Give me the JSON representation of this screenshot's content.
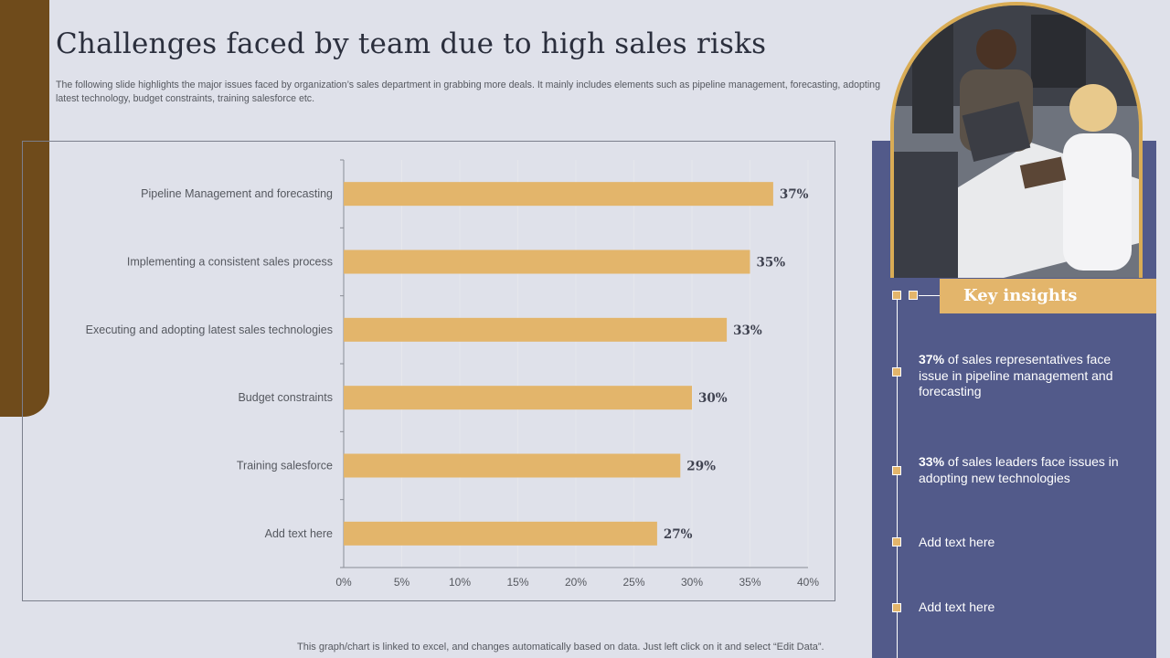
{
  "title": "Challenges faced by team due to high sales risks",
  "subtitle": "The following slide highlights the major issues faced by organization’s sales department in grabbing more deals. It mainly includes elements such as pipeline management, forecasting, adopting latest technology, budget constraints, training salesforce etc.",
  "chart_data": {
    "type": "bar",
    "orientation": "horizontal",
    "categories": [
      "Pipeline Management and forecasting",
      "Implementing a consistent sales process",
      "Executing and adopting latest sales technologies",
      "Budget constraints",
      "Training salesforce",
      "Add text here"
    ],
    "values": [
      37,
      35,
      33,
      30,
      29,
      27
    ],
    "value_labels": [
      "37%",
      "35%",
      "33%",
      "30%",
      "29%",
      "27%"
    ],
    "xlim": [
      0,
      40
    ],
    "x_ticks": [
      "0%",
      "5%",
      "10%",
      "15%",
      "20%",
      "25%",
      "30%",
      "35%",
      "40%"
    ],
    "grid": true,
    "bar_color": "#e3b56b"
  },
  "insights": {
    "header": "Key insights",
    "items": [
      {
        "highlight": "37%",
        "text": " of sales representatives face issue in pipeline management and forecasting"
      },
      {
        "highlight": "33%",
        "text": " of sales leaders face issues in adopting new technologies"
      },
      {
        "highlight": "",
        "text": "Add text here"
      },
      {
        "highlight": "",
        "text": "Add text here"
      }
    ]
  },
  "footnote": "This graph/chart is linked to excel, and changes automatically based on data. Just left click on it and select “Edit Data”.",
  "colors": {
    "background": "#dfe1ea",
    "brown_accent": "#6f4b1b",
    "panel": "#525a8a",
    "gold": "#e3b56b"
  }
}
